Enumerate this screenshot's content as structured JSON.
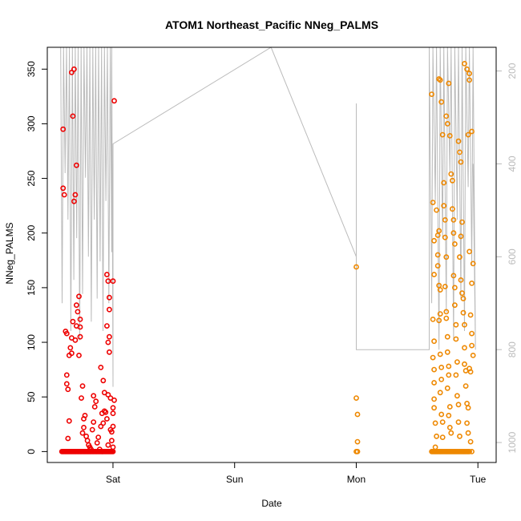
{
  "chart_data": {
    "type": "scatter",
    "title": "ATOM1 Northeast_Pacific NNeg_PALMS",
    "xlabel": "Date",
    "ylabel": "NNeg_PALMS",
    "x_ticks": [
      {
        "label": "Sat",
        "value": 1.0
      },
      {
        "label": "Sun",
        "value": 2.0
      },
      {
        "label": "Mon",
        "value": 3.0
      },
      {
        "label": "Tue",
        "value": 4.0
      }
    ],
    "xlim": [
      0.46,
      4.15
    ],
    "ylim": [
      -10,
      370
    ],
    "y_ticks": [
      0,
      50,
      100,
      150,
      200,
      250,
      300,
      350
    ],
    "y2_ticks": [
      200,
      400,
      600,
      800,
      1000
    ],
    "y2lim": [
      1043,
      149
    ],
    "colors": {
      "series_red": "#ee0000",
      "series_orange": "#ee8800",
      "altitude": "#bbbbbb"
    },
    "series": [
      {
        "color": "red",
        "points": [
          [
            0.59,
            295
          ],
          [
            0.59,
            241
          ],
          [
            0.6,
            235
          ],
          [
            0.62,
            70
          ],
          [
            0.62,
            62
          ],
          [
            0.63,
            57
          ],
          [
            0.64,
            28
          ],
          [
            0.63,
            12
          ],
          [
            0.61,
            110
          ],
          [
            0.62,
            108
          ],
          [
            0.64,
            88
          ],
          [
            0.65,
            95
          ],
          [
            0.66,
            90
          ],
          [
            0.67,
            119
          ],
          [
            0.66,
            104
          ],
          [
            0.69,
            102
          ],
          [
            0.66,
            347
          ],
          [
            0.68,
            350
          ],
          [
            0.67,
            307
          ],
          [
            0.69,
            235
          ],
          [
            0.68,
            229
          ],
          [
            0.7,
            262
          ],
          [
            0.7,
            134
          ],
          [
            0.7,
            115
          ],
          [
            0.71,
            128
          ],
          [
            0.72,
            88
          ],
          [
            0.72,
            142
          ],
          [
            0.73,
            121
          ],
          [
            0.73,
            114
          ],
          [
            0.73,
            105
          ],
          [
            0.75,
            60
          ],
          [
            0.74,
            49
          ],
          [
            0.76,
            30
          ],
          [
            0.77,
            33
          ],
          [
            0.75,
            17
          ],
          [
            0.76,
            22
          ],
          [
            0.78,
            14
          ],
          [
            0.79,
            10
          ],
          [
            0.8,
            6
          ],
          [
            0.81,
            4
          ],
          [
            0.82,
            2
          ],
          [
            0.83,
            20
          ],
          [
            0.84,
            27
          ],
          [
            0.85,
            41
          ],
          [
            0.86,
            46
          ],
          [
            0.87,
            8
          ],
          [
            0.88,
            13
          ],
          [
            0.89,
            2
          ],
          [
            0.9,
            23
          ],
          [
            0.91,
            35
          ],
          [
            0.92,
            26
          ],
          [
            0.93,
            37
          ],
          [
            0.94,
            36
          ],
          [
            0.95,
            30
          ],
          [
            0.9,
            77
          ],
          [
            0.92,
            65
          ],
          [
            0.93,
            54
          ],
          [
            0.95,
            115
          ],
          [
            0.96,
            100
          ],
          [
            0.97,
            91
          ],
          [
            0.97,
            105
          ],
          [
            0.98,
            20
          ],
          [
            0.99,
            18
          ],
          [
            0.95,
            162
          ],
          [
            0.96,
            156
          ],
          [
            0.97,
            141
          ],
          [
            0.97,
            130
          ],
          [
            0.98,
            49
          ],
          [
            0.96,
            52
          ],
          [
            1.0,
            35
          ],
          [
            1.0,
            40
          ],
          [
            1.0,
            4
          ],
          [
            1.0,
            23
          ],
          [
            1.01,
            321
          ],
          [
            1.0,
            156
          ],
          [
            1.01,
            47
          ],
          [
            0.96,
            6
          ],
          [
            0.99,
            10
          ],
          [
            0.84,
            51
          ]
        ],
        "zeros_from": 0.58,
        "zeros_to": 1.0,
        "zeros_count": 48
      },
      {
        "color": "orange",
        "points": [
          [
            3.0,
            169
          ],
          [
            3.0,
            49
          ],
          [
            3.01,
            34
          ],
          [
            3.01,
            9
          ],
          [
            3.0,
            0
          ],
          [
            3.01,
            0
          ],
          [
            3.62,
            327
          ],
          [
            3.63,
            228
          ],
          [
            3.64,
            193
          ],
          [
            3.64,
            162
          ],
          [
            3.63,
            121
          ],
          [
            3.64,
            101
          ],
          [
            3.63,
            86
          ],
          [
            3.64,
            75
          ],
          [
            3.64,
            63
          ],
          [
            3.64,
            48
          ],
          [
            3.64,
            40
          ],
          [
            3.65,
            26
          ],
          [
            3.66,
            14
          ],
          [
            3.65,
            4
          ],
          [
            3.66,
            221
          ],
          [
            3.67,
            198
          ],
          [
            3.68,
            202
          ],
          [
            3.67,
            180
          ],
          [
            3.67,
            170
          ],
          [
            3.68,
            152
          ],
          [
            3.69,
            148
          ],
          [
            3.69,
            126
          ],
          [
            3.68,
            120
          ],
          [
            3.69,
            89
          ],
          [
            3.7,
            77
          ],
          [
            3.7,
            66
          ],
          [
            3.69,
            54
          ],
          [
            3.7,
            34
          ],
          [
            3.71,
            27
          ],
          [
            3.71,
            13
          ],
          [
            3.68,
            341
          ],
          [
            3.69,
            340
          ],
          [
            3.7,
            320
          ],
          [
            3.71,
            290
          ],
          [
            3.72,
            246
          ],
          [
            3.72,
            225
          ],
          [
            3.73,
            212
          ],
          [
            3.73,
            196
          ],
          [
            3.74,
            178
          ],
          [
            3.73,
            151
          ],
          [
            3.74,
            128
          ],
          [
            3.74,
            122
          ],
          [
            3.75,
            105
          ],
          [
            3.75,
            91
          ],
          [
            3.76,
            78
          ],
          [
            3.76,
            70
          ],
          [
            3.75,
            58
          ],
          [
            3.77,
            41
          ],
          [
            3.76,
            33
          ],
          [
            3.77,
            22
          ],
          [
            3.78,
            17
          ],
          [
            3.74,
            307
          ],
          [
            3.75,
            300
          ],
          [
            3.76,
            337
          ],
          [
            3.77,
            289
          ],
          [
            3.78,
            254
          ],
          [
            3.79,
            248
          ],
          [
            3.79,
            222
          ],
          [
            3.8,
            212
          ],
          [
            3.8,
            200
          ],
          [
            3.81,
            190
          ],
          [
            3.8,
            161
          ],
          [
            3.81,
            150
          ],
          [
            3.81,
            134
          ],
          [
            3.82,
            116
          ],
          [
            3.82,
            103
          ],
          [
            3.83,
            82
          ],
          [
            3.82,
            70
          ],
          [
            3.83,
            51
          ],
          [
            3.84,
            43
          ],
          [
            3.84,
            27
          ],
          [
            3.85,
            14
          ],
          [
            3.84,
            284
          ],
          [
            3.85,
            274
          ],
          [
            3.86,
            265
          ],
          [
            3.87,
            210
          ],
          [
            3.86,
            197
          ],
          [
            3.85,
            178
          ],
          [
            3.86,
            157
          ],
          [
            3.87,
            145
          ],
          [
            3.88,
            140
          ],
          [
            3.88,
            127
          ],
          [
            3.89,
            116
          ],
          [
            3.89,
            95
          ],
          [
            3.89,
            80
          ],
          [
            3.9,
            74
          ],
          [
            3.9,
            60
          ],
          [
            3.91,
            44
          ],
          [
            3.91,
            26
          ],
          [
            3.92,
            17
          ],
          [
            3.89,
            355
          ],
          [
            3.91,
            350
          ],
          [
            3.93,
            346
          ],
          [
            3.93,
            340
          ],
          [
            3.92,
            290
          ],
          [
            3.95,
            293
          ],
          [
            3.93,
            183
          ],
          [
            3.95,
            154
          ],
          [
            3.96,
            172
          ],
          [
            3.94,
            125
          ],
          [
            3.95,
            108
          ],
          [
            3.95,
            97
          ],
          [
            3.96,
            88
          ],
          [
            3.93,
            76
          ],
          [
            3.94,
            73
          ],
          [
            3.92,
            40
          ],
          [
            3.95,
            0
          ],
          [
            3.94,
            9
          ]
        ],
        "zeros_from": 3.62,
        "zeros_to": 3.93,
        "zeros_count": 40
      }
    ]
  }
}
